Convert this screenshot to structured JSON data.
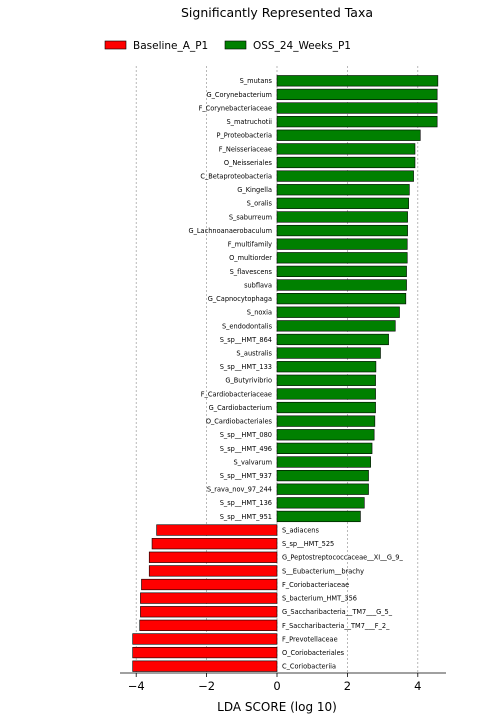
{
  "chart_data": {
    "type": "bar",
    "orientation": "horizontal",
    "title": "Significantly Represented Taxa",
    "xlabel": "LDA SCORE (log 10)",
    "ylabel": "",
    "xlim": [
      -4.2,
      4.6
    ],
    "xticks": [
      -4,
      -2,
      0,
      2,
      4
    ],
    "grid": "x-dashed",
    "legend_position": "top",
    "series": [
      {
        "name": "Baseline_A_P1",
        "color": "#ff0000"
      },
      {
        "name": "OSS_24_Weeks_P1",
        "color": "#008000"
      }
    ],
    "bars": [
      {
        "label": "S_mutans",
        "value": 4.57,
        "series": 1
      },
      {
        "label": "G_Corynebacterium",
        "value": 4.55,
        "series": 1
      },
      {
        "label": "F_Corynebacteriaceae",
        "value": 4.55,
        "series": 1
      },
      {
        "label": "S_matruchotii",
        "value": 4.55,
        "series": 1
      },
      {
        "label": "P_Proteobacteria",
        "value": 4.07,
        "series": 1
      },
      {
        "label": "F_Neisseriaceae",
        "value": 3.92,
        "series": 1
      },
      {
        "label": "O_Neisseriales",
        "value": 3.92,
        "series": 1
      },
      {
        "label": "C_Betaproteobacteria",
        "value": 3.88,
        "series": 1
      },
      {
        "label": "G_Kingella",
        "value": 3.76,
        "series": 1
      },
      {
        "label": "S_oralis",
        "value": 3.74,
        "series": 1
      },
      {
        "label": "S_saburreum",
        "value": 3.71,
        "series": 1
      },
      {
        "label": "G_Lachnoanaerobaculum",
        "value": 3.71,
        "series": 1
      },
      {
        "label": "F_multifamily",
        "value": 3.7,
        "series": 1
      },
      {
        "label": "O_multiorder",
        "value": 3.7,
        "series": 1
      },
      {
        "label": "S_flavescens",
        "value": 3.68,
        "series": 1
      },
      {
        "label": "subflava",
        "value": 3.68,
        "series": 1
      },
      {
        "label": "G_Capnocytophaga",
        "value": 3.66,
        "series": 1
      },
      {
        "label": "S_noxia",
        "value": 3.48,
        "series": 1
      },
      {
        "label": "S_endodontalis",
        "value": 3.36,
        "series": 1
      },
      {
        "label": "S_sp__HMT_864",
        "value": 3.17,
        "series": 1
      },
      {
        "label": "S_australis",
        "value": 2.94,
        "series": 1
      },
      {
        "label": "S_sp__HMT_133",
        "value": 2.81,
        "series": 1
      },
      {
        "label": "G_Butyrivibrio",
        "value": 2.8,
        "series": 1
      },
      {
        "label": "F_Cardiobacteriaceae",
        "value": 2.8,
        "series": 1
      },
      {
        "label": "G_Cardiobacterium",
        "value": 2.8,
        "series": 1
      },
      {
        "label": "O_Cardiobacteriales",
        "value": 2.78,
        "series": 1
      },
      {
        "label": "S_sp__HMT_080",
        "value": 2.76,
        "series": 1
      },
      {
        "label": "S_sp__HMT_496",
        "value": 2.7,
        "series": 1
      },
      {
        "label": "S_valvarum",
        "value": 2.66,
        "series": 1
      },
      {
        "label": "S_sp__HMT_937",
        "value": 2.6,
        "series": 1
      },
      {
        "label": "S_rava_nov_97_244",
        "value": 2.6,
        "series": 1
      },
      {
        "label": "S_sp__HMT_136",
        "value": 2.48,
        "series": 1
      },
      {
        "label": "S_sp__HMT_951",
        "value": 2.37,
        "series": 1
      },
      {
        "label": "S_adiacens",
        "value": -3.42,
        "series": 0
      },
      {
        "label": "S_sp__HMT_525",
        "value": -3.55,
        "series": 0
      },
      {
        "label": "G_Peptostreptococcaceae__XI__G_9_",
        "value": -3.63,
        "series": 0
      },
      {
        "label": "S__Eubacterium__brachy",
        "value": -3.63,
        "series": 0
      },
      {
        "label": "F_Coriobacteriaceae",
        "value": -3.85,
        "series": 0
      },
      {
        "label": "S_bacterium_HMT_356",
        "value": -3.88,
        "series": 0
      },
      {
        "label": "G_Saccharibacteria__TM7___G_5_",
        "value": -3.88,
        "series": 0
      },
      {
        "label": "F_Saccharibacteria__TM7___F_2_",
        "value": -3.9,
        "series": 0
      },
      {
        "label": "F_Prevotellaceae",
        "value": -4.1,
        "series": 0
      },
      {
        "label": "O_Coriobacteriales",
        "value": -4.1,
        "series": 0
      },
      {
        "label": "C_Coriobacteriia",
        "value": -4.1,
        "series": 0
      }
    ]
  }
}
